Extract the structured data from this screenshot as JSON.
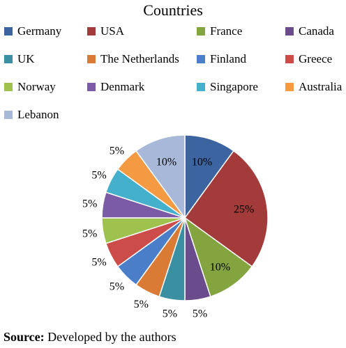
{
  "chart_data": {
    "type": "pie",
    "title": "Countries",
    "categories": [
      "Germany",
      "USA",
      "France",
      "Canada",
      "UK",
      "The Netherlands",
      "Finland",
      "Greece",
      "Norway",
      "Denmark",
      "Singapore",
      "Australia",
      "Lebanon"
    ],
    "values": [
      10,
      25,
      10,
      5,
      5,
      5,
      5,
      5,
      5,
      5,
      5,
      5,
      10
    ],
    "data_labels": [
      "10%",
      "25%",
      "10%",
      "5%",
      "5%",
      "5%",
      "5%",
      "5%",
      "5%",
      "5%",
      "5%",
      "5%",
      "10%"
    ],
    "colors": [
      "#3b64a0",
      "#a23b39",
      "#83a43f",
      "#6a4b8c",
      "#3b8fa3",
      "#d97b35",
      "#4b7ec8",
      "#cc4c4a",
      "#9fc24f",
      "#7b5aa6",
      "#45b0cc",
      "#f39a42",
      "#a8b8d8"
    ],
    "legend_position": "top",
    "unit": "%"
  },
  "source": {
    "label": "Source:",
    "text": " Developed by the authors"
  }
}
